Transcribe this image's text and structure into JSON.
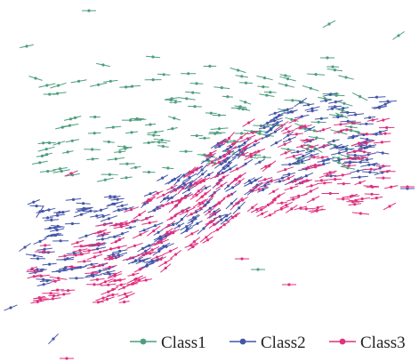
{
  "chart_data": {
    "type": "scatter",
    "description_visible": false,
    "legend_position": "bottom-right",
    "grid": false,
    "axes_visible": false,
    "series": [
      {
        "name": "Class1",
        "color": "#4e9e7e",
        "marker": "dot-with-direction-segment"
      },
      {
        "name": "Class2",
        "color": "#4456a8",
        "marker": "dot-with-direction-segment"
      },
      {
        "name": "Class3",
        "color": "#e0307f",
        "marker": "dot-with-direction-segment"
      }
    ]
  }
}
